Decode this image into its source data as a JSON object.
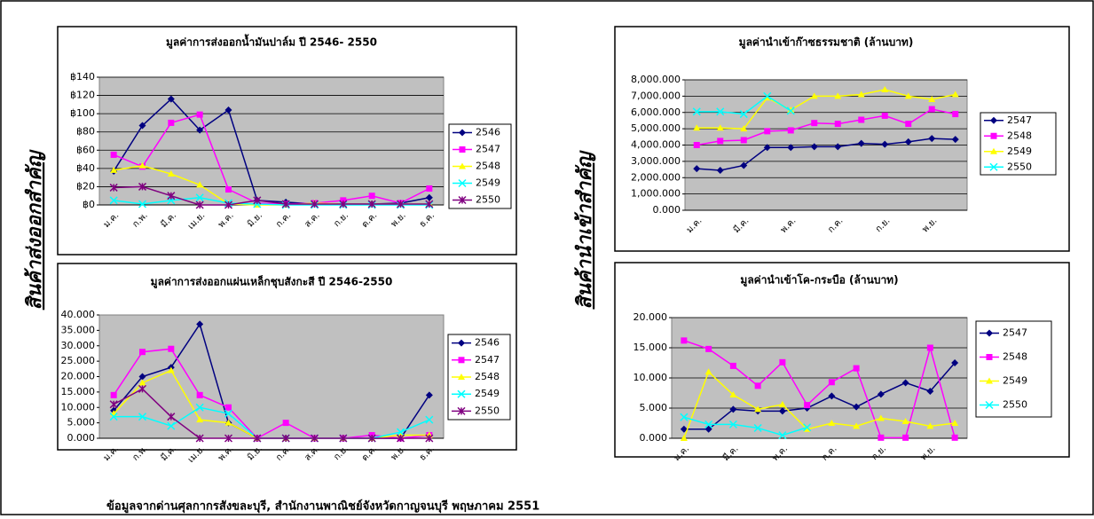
{
  "side_labels": [
    "สินค้าส่งออกสำคัญ",
    "สินค้านำเข้าสำคัญ"
  ],
  "footer": "ข้อมูลจากด่านศุลกากรสังขละบุรี, สำนักงานพาณิชย์จังหวัดกาญจนบุรี  พฤษภาคม 2551",
  "chart_data": [
    {
      "type": "line",
      "title": "มูลค่าการส่งออกน้ำมันปาล์ม ปี 2546- 2550",
      "categories": [
        "ม.ค.",
        "ก.พ.",
        "มี.ค.",
        "เม.ย.",
        "พ.ค.",
        "มิ.ย.",
        "ก.ค.",
        "ส.ค.",
        "ก.ย.",
        "ต.ค.",
        "พ.ย.",
        "ธ.ค."
      ],
      "ylim": [
        0,
        140
      ],
      "yticks": [
        {
          "value": 0,
          "label": "฿0"
        },
        {
          "value": 20,
          "label": "฿20"
        },
        {
          "value": 40,
          "label": "฿40"
        },
        {
          "value": 60,
          "label": "฿60"
        },
        {
          "value": 80,
          "label": "฿80"
        },
        {
          "value": 100,
          "label": "฿100"
        },
        {
          "value": 120,
          "label": "฿120"
        },
        {
          "value": 140,
          "label": "฿140"
        }
      ],
      "grid": true,
      "legend": "right",
      "series": [
        {
          "name": "2546",
          "color": "#000080",
          "marker": "diamond",
          "values": [
            37,
            87,
            116,
            82,
            104,
            5,
            3,
            1,
            1,
            1,
            2,
            8
          ]
        },
        {
          "name": "2547",
          "color": "#ff00ff",
          "marker": "square",
          "values": [
            55,
            42,
            90,
            99,
            17,
            2,
            1,
            2,
            5,
            10,
            2,
            18
          ]
        },
        {
          "name": "2548",
          "color": "#ffff00",
          "marker": "triangle",
          "values": [
            38,
            43,
            34,
            22,
            1,
            0,
            0,
            2,
            1,
            1,
            1,
            1
          ]
        },
        {
          "name": "2549",
          "color": "#00ffff",
          "marker": "x",
          "values": [
            5,
            1,
            5,
            8,
            2,
            1,
            0,
            0,
            0,
            0,
            0,
            0
          ]
        },
        {
          "name": "2550",
          "color": "#800080",
          "marker": "star",
          "values": [
            19,
            20,
            10,
            0,
            0,
            5,
            1,
            1,
            1,
            1,
            1,
            1
          ]
        }
      ]
    },
    {
      "type": "line",
      "title": "มูลค่าการส่งออกแผ่นเหล็กชุบสังกะสี ปี 2546-2550",
      "categories": [
        "ม.ค.",
        "ก.พ.",
        "มี.ค.",
        "เม.ย.",
        "พ.ค.",
        "มิ.ย.",
        "ก.ค.",
        "ส.ค.",
        "ก.ย.",
        "ต.ค.",
        "พ.ย.",
        "ธ.ค."
      ],
      "ylim": [
        0,
        40
      ],
      "yticks": [
        {
          "value": 0,
          "label": "0.000"
        },
        {
          "value": 5,
          "label": "5.000"
        },
        {
          "value": 10,
          "label": "10.000"
        },
        {
          "value": 15,
          "label": "15.000"
        },
        {
          "value": 20,
          "label": "20.000"
        },
        {
          "value": 25,
          "label": "25.000"
        },
        {
          "value": 30,
          "label": "30.000"
        },
        {
          "value": 35,
          "label": "35.000"
        },
        {
          "value": 40,
          "label": "40.000"
        }
      ],
      "grid": false,
      "legend": "right",
      "series": [
        {
          "name": "2546",
          "color": "#000080",
          "marker": "diamond",
          "values": [
            9,
            20,
            23,
            37,
            5,
            0,
            0,
            0,
            0,
            0,
            0,
            14
          ]
        },
        {
          "name": "2547",
          "color": "#ff00ff",
          "marker": "square",
          "values": [
            14,
            28,
            29,
            14,
            10,
            0,
            5,
            0,
            0,
            1,
            0,
            1
          ]
        },
        {
          "name": "2548",
          "color": "#ffff00",
          "marker": "triangle",
          "values": [
            8,
            18,
            22,
            6,
            5,
            0,
            0,
            0,
            0,
            0,
            1,
            1
          ]
        },
        {
          "name": "2549",
          "color": "#00ffff",
          "marker": "x",
          "values": [
            7,
            7,
            4,
            10,
            8,
            0,
            0,
            0,
            0,
            0,
            2,
            6
          ]
        },
        {
          "name": "2550",
          "color": "#800080",
          "marker": "star",
          "values": [
            11,
            16,
            7,
            0,
            0,
            0,
            0,
            0,
            0,
            0,
            0,
            0
          ]
        }
      ]
    },
    {
      "type": "line",
      "title": "มูลค่านำเข้าก๊าซธรรมชาติ (ล้านบาท)",
      "categories": [
        "ม.ค.",
        null,
        "มี.ค.",
        null,
        "พ.ค.",
        null,
        "ก.ค.",
        null,
        "ก.ย.",
        null,
        "พ.ย.",
        null
      ],
      "ylim": [
        0,
        8000
      ],
      "yticks": [
        {
          "value": 0,
          "label": "0.000"
        },
        {
          "value": 1000,
          "label": "1,000.000"
        },
        {
          "value": 2000,
          "label": "2,000.000"
        },
        {
          "value": 3000,
          "label": "3,000.000"
        },
        {
          "value": 4000,
          "label": "4,000.000"
        },
        {
          "value": 5000,
          "label": "5,000.000"
        },
        {
          "value": 6000,
          "label": "6,000.000"
        },
        {
          "value": 7000,
          "label": "7,000.000"
        },
        {
          "value": 8000,
          "label": "8,000.000"
        }
      ],
      "grid": true,
      "legend": "right",
      "series": [
        {
          "name": "2547",
          "color": "#000080",
          "marker": "diamond",
          "values": [
            2550,
            2450,
            2750,
            3850,
            3850,
            3900,
            3900,
            4100,
            4050,
            4200,
            4400,
            4350
          ]
        },
        {
          "name": "2548",
          "color": "#ff00ff",
          "marker": "square",
          "values": [
            4000,
            4250,
            4300,
            4850,
            4900,
            5350,
            5300,
            5550,
            5800,
            5300,
            6200,
            5900
          ]
        },
        {
          "name": "2549",
          "color": "#ffff00",
          "marker": "triangle",
          "values": [
            5050,
            5050,
            5000,
            6900,
            6150,
            7000,
            7000,
            7100,
            7400,
            7000,
            6800,
            7100
          ]
        },
        {
          "name": "2550",
          "color": "#00ffff",
          "marker": "x",
          "values": [
            6050,
            6050,
            5900,
            7000,
            6100,
            null,
            null,
            null,
            null,
            null,
            null,
            null
          ]
        }
      ]
    },
    {
      "type": "line",
      "title": "มูลค่านำเข้าโค-กระบือ (ล้านบาท)",
      "categories": [
        "ม.ค.",
        null,
        "มี.ค.",
        null,
        "พ.ค.",
        null,
        "ก.ค.",
        null,
        "ก.ย.",
        null,
        "พ.ย.",
        null
      ],
      "ylim": [
        0,
        20
      ],
      "yticks": [
        {
          "value": 0,
          "label": "0.000"
        },
        {
          "value": 5,
          "label": "5.000"
        },
        {
          "value": 10,
          "label": "10.000"
        },
        {
          "value": 15,
          "label": "15.000"
        },
        {
          "value": 20,
          "label": "20.000"
        }
      ],
      "grid": true,
      "legend": "right",
      "series": [
        {
          "name": "2547",
          "color": "#000080",
          "marker": "diamond",
          "values": [
            1.5,
            1.5,
            4.8,
            4.5,
            4.5,
            5,
            7,
            5.2,
            7.3,
            9.2,
            7.8,
            12.5
          ]
        },
        {
          "name": "2548",
          "color": "#ff00ff",
          "marker": "square",
          "values": [
            16.2,
            14.8,
            12,
            8.7,
            12.6,
            5.5,
            9.3,
            11.6,
            0.1,
            0.1,
            15,
            0.1
          ]
        },
        {
          "name": "2549",
          "color": "#ffff00",
          "marker": "triangle",
          "values": [
            0,
            11,
            7.2,
            4.8,
            5.6,
            1.5,
            2.5,
            2,
            3.3,
            2.8,
            2,
            2.5
          ]
        },
        {
          "name": "2550",
          "color": "#00ffff",
          "marker": "x",
          "values": [
            3.5,
            2.3,
            2.3,
            1.7,
            0.5,
            1.8,
            null,
            null,
            null,
            null,
            null,
            null
          ]
        }
      ]
    }
  ]
}
